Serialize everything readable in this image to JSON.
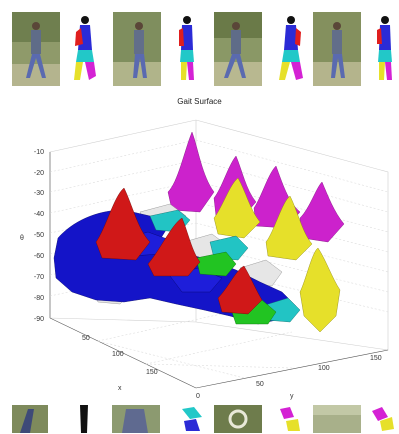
{
  "figure": {
    "title": "Gait Surface",
    "z_label": "θ",
    "x_label": "x",
    "y_label": "y",
    "z_ticks": [
      "-10",
      "-20",
      "-30",
      "-40",
      "-50",
      "-60",
      "-70",
      "-80",
      "-90"
    ],
    "x_ticks": [
      "50",
      "100",
      "150"
    ],
    "y_ticks": [
      "0",
      "50",
      "100",
      "150"
    ],
    "colors": {
      "blue": "#1414c8",
      "red": "#d01818",
      "magenta": "#cc22cc",
      "yellow": "#e6e02a",
      "cyan": "#22c4c4",
      "green": "#22c422",
      "white": "#e6e6e6"
    }
  },
  "top_strip": [
    {
      "kind": "photo"
    },
    {
      "kind": "mask"
    },
    {
      "kind": "photo"
    },
    {
      "kind": "mask"
    },
    {
      "kind": "photo"
    },
    {
      "kind": "mask"
    },
    {
      "kind": "photo"
    },
    {
      "kind": "mask"
    }
  ],
  "bottom_strip": [
    {
      "kind": "photo"
    },
    {
      "kind": "mask"
    },
    {
      "kind": "photo"
    },
    {
      "kind": "mask"
    },
    {
      "kind": "photo"
    },
    {
      "kind": "mask"
    },
    {
      "kind": "photo"
    },
    {
      "kind": "mask"
    }
  ]
}
